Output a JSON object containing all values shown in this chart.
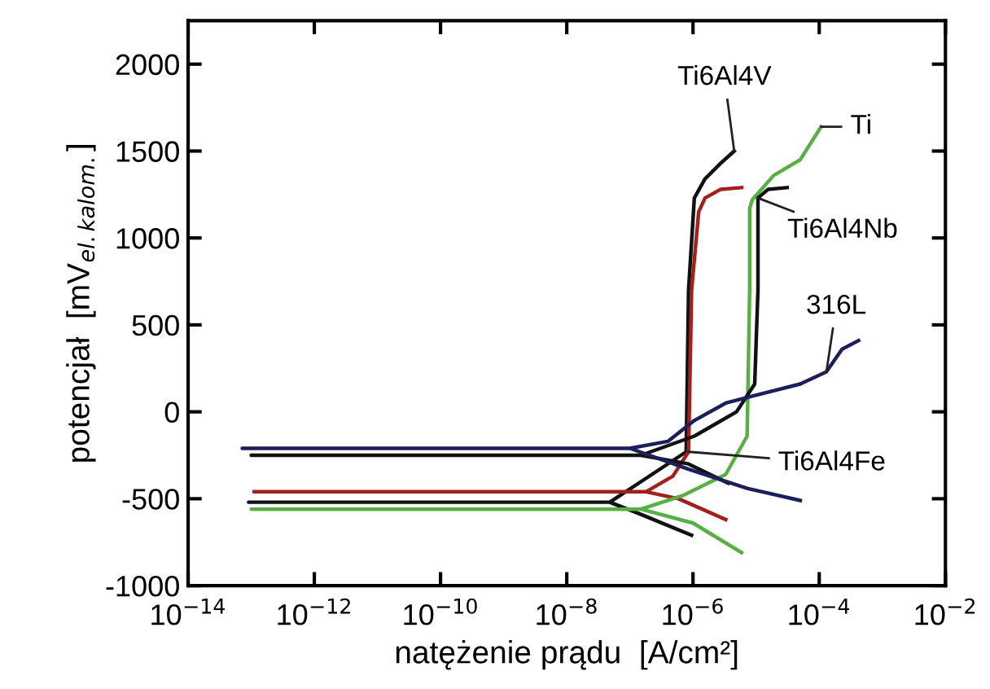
{
  "chart_data": {
    "type": "line",
    "xlabel": "natężenie prądu  [A/cm²]",
    "ylabel": "potencjał  [mV$_{el.kalom.}$]",
    "log": "x",
    "grid": false,
    "legend": false,
    "marker": "none",
    "line_style": "solid",
    "xlim": [
      1e-14,
      0.01
    ],
    "ylim": [
      -1000,
      2250
    ],
    "xticks": [
      {
        "value": 1e-14,
        "label": "10$^{−14}$"
      },
      {
        "value": 1e-12,
        "label": "10$^{−12}$"
      },
      {
        "value": 1e-10,
        "label": "10$^{−10}$"
      },
      {
        "value": 1e-08,
        "label": "10$^{−8}$"
      },
      {
        "value": 1e-06,
        "label": "10$^{−6}$"
      },
      {
        "value": 0.0001,
        "label": "10$^{−4}$"
      },
      {
        "value": 0.01,
        "label": "10$^{−2}$"
      }
    ],
    "yticks": [
      -1000,
      -500,
      0,
      500,
      1000,
      1500,
      2000
    ],
    "series": [
      {
        "name": "Ti6Al4V",
        "color": "#111111",
        "x": [
          9.5e-07,
          1.5e-07,
          4.8e-08,
          9.1e-14,
          4.8e-08,
          7.8e-07,
          8.5e-07,
          1.05e-06,
          1.55e-06,
          2.75e-06,
          4.5e-06
        ],
        "values": [
          -710,
          -590,
          -520,
          -520,
          -520,
          -230,
          700,
          1230,
          1340,
          1430,
          1500
        ]
      },
      {
        "name": "Ti6Al4Fe",
        "color": "#a3201c",
        "x": [
          3.3e-06,
          5.9e-07,
          1.8e-07,
          1.1e-13,
          1.8e-07,
          4.8e-07,
          8.5e-07,
          9.5e-07,
          1.23e-06,
          1.55e-06,
          2.75e-06,
          5.9e-06
        ],
        "values": [
          -620,
          -500,
          -460,
          -460,
          -460,
          -370,
          -230,
          700,
          1150,
          1230,
          1280,
          1290
        ]
      },
      {
        "name": "Ti",
        "color": "#58b045",
        "x": [
          5.9e-06,
          1e-06,
          1.5e-07,
          1e-13,
          1.5e-07,
          7.1e-07,
          3.3e-06,
          7.2e-06,
          7.9e-06,
          7.9e-06,
          8.7e-06,
          1.9e-05,
          5e-05,
          0.000107
        ],
        "values": [
          -810,
          -640,
          -560,
          -560,
          -560,
          -480,
          -360,
          -140,
          700,
          1170,
          1220,
          1360,
          1450,
          1640
        ]
      },
      {
        "name": "Ti6Al4Nb",
        "color": "#111111",
        "x": [
          3.6e-06,
          8.5e-07,
          1.5e-07,
          1e-13,
          1.5e-07,
          1.05e-06,
          4.9e-06,
          9.5e-06,
          1.07e-05,
          1.07e-05,
          1.55e-05,
          3.1e-05
        ],
        "values": [
          -410,
          -300,
          -250,
          -250,
          -250,
          -140,
          0,
          160,
          700,
          1230,
          1280,
          1290
        ]
      },
      {
        "name": "316L",
        "color": "#1c1f5c",
        "x": [
          5e-05,
          7.2e-06,
          8.5e-07,
          1e-07,
          7.2e-14,
          1e-07,
          4e-07,
          1.05e-06,
          3.3e-06,
          8.7e-06,
          5e-05,
          0.00013,
          0.00023,
          0.00042
        ],
        "values": [
          -510,
          -440,
          -330,
          -210,
          -210,
          -210,
          -170,
          -50,
          50,
          90,
          160,
          230,
          360,
          410
        ]
      }
    ]
  }
}
